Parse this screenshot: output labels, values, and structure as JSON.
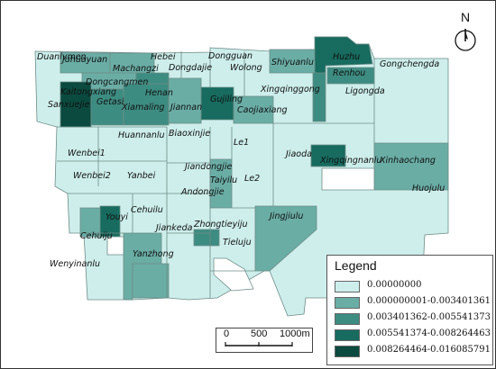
{
  "colors": {
    "class0": "#cdeeeb",
    "class1": "#6aada5",
    "class2": "#3d8c81",
    "class3": "#176b5f",
    "class4": "#0a4a3f",
    "border": "#6e8c87"
  },
  "north_label": "N",
  "legend": {
    "title": "Legend",
    "items": [
      {
        "label": "0.00000000",
        "class": "class0"
      },
      {
        "label": "0.000000001-0.003401361",
        "class": "class1"
      },
      {
        "label": "0.003401362-0.005541373",
        "class": "class2"
      },
      {
        "label": "0.005541374-0.008264463",
        "class": "class3"
      },
      {
        "label": "0.008264464-0.016085791",
        "class": "class4"
      }
    ]
  },
  "scale_bar": {
    "labels": [
      "0",
      "500",
      "1000m"
    ]
  },
  "places": {
    "duanlvmen": "Duanlvmen",
    "huhuayuan": "Juhuayuan",
    "hebei": "Hebei",
    "dongguan": "Dongguan",
    "shiyuanlu": "Shiyuanlu",
    "huzhu": "Huzhu",
    "gongchengda": "Gongchengda",
    "machangzi": "Machangzi",
    "dongdajie": "Dongdajie",
    "wolong": "Wolong",
    "renhou": "Renhou",
    "dongcangmen": "Dongcangmen",
    "xingqinggong": "Xingqinggong",
    "ligongda": "Ligongda",
    "kaitongxiang": "Kaitongxiang",
    "henan": "Henan",
    "sanxuejie": "Sanxuejie",
    "getasi": "Getasi",
    "xiamaling": "Xiamaling",
    "jiannan": "Jiannan",
    "gujiling": "Gujiling",
    "caojiaxiang": "Caojiaxiang",
    "huannanlu": "Huannanlu",
    "biaoxinjie": "Biaoxinjie",
    "le1": "Le1",
    "jiaoda": "Jiaoda",
    "xingqingnanlu": "Xingqingnanlu",
    "xinhaochang": "Xinhaochang",
    "wenbei1": "Wenbei1",
    "jiandongjie": "Jiandongjie",
    "taiyilu": "Taiyilu",
    "le2": "Le2",
    "huojulu": "Huojulu",
    "wenbei2": "Wenbei2",
    "yanbei": "Yanbei",
    "andongjie": "Andongjie",
    "cehuilu": "Cehuilu",
    "youyi": "Youyi",
    "jinjiulu": "Jingjiulu",
    "cehuiju": "Cehuiju",
    "jiankeda": "Jiankeda",
    "zhongtieyiju": "Zhongtieyiju",
    "yanzhong": "Yanzhong",
    "tieluju": "Tieluju",
    "wenyinanlu": "Wenyinanlu"
  }
}
